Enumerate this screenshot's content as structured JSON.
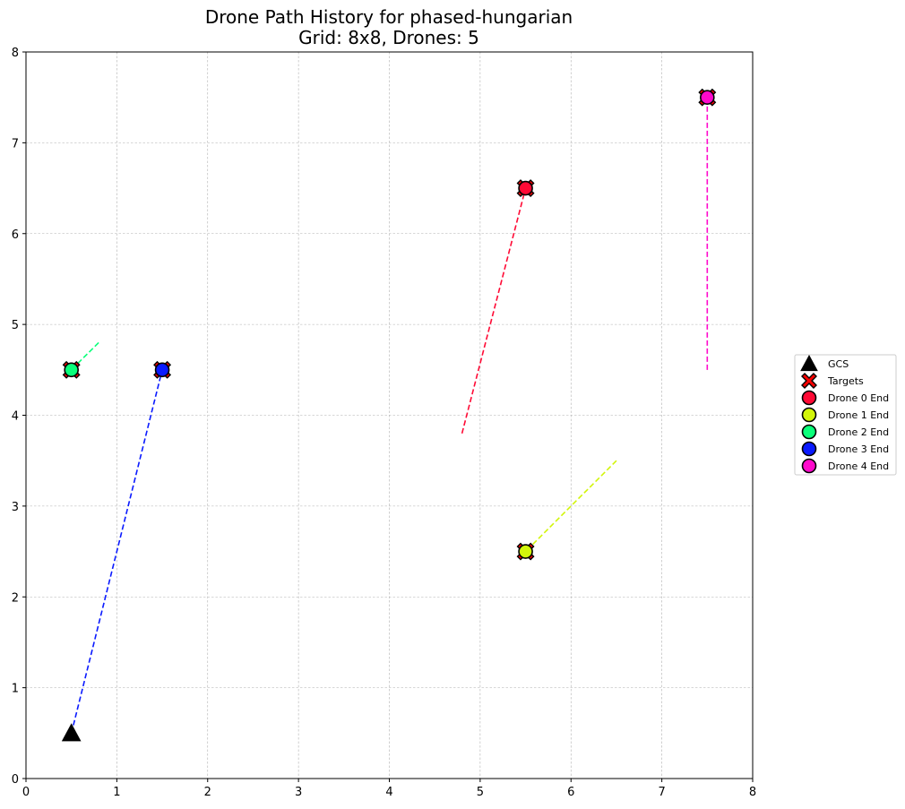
{
  "chart_data": {
    "type": "scatter",
    "title": "Drone Path History for phased-hungarian",
    "subtitle": "Grid: 8x8, Drones: 5",
    "xlabel": "",
    "ylabel": "",
    "xlim": [
      0,
      8
    ],
    "ylim": [
      0,
      8
    ],
    "xticks": [
      0,
      1,
      2,
      3,
      4,
      5,
      6,
      7,
      8
    ],
    "yticks": [
      0,
      1,
      2,
      3,
      4,
      5,
      6,
      7,
      8
    ],
    "grid": true,
    "legend_position": "right",
    "gcs": {
      "name": "GCS",
      "x": 0.5,
      "y": 0.5,
      "color": "#000000"
    },
    "targets": {
      "name": "Targets",
      "color": "#ff0000",
      "points": [
        [
          5.5,
          6.5
        ],
        [
          5.5,
          2.5
        ],
        [
          0.5,
          4.5
        ],
        [
          1.5,
          4.5
        ],
        [
          7.5,
          7.5
        ]
      ]
    },
    "drones": [
      {
        "name": "Drone 0 End",
        "color": "#ff0a35",
        "path": [
          [
            4.8,
            3.8
          ],
          [
            5.5,
            6.5
          ]
        ],
        "end": [
          5.5,
          6.5
        ]
      },
      {
        "name": "Drone 1 End",
        "color": "#d2f50a",
        "path": [
          [
            6.5,
            3.5
          ],
          [
            5.5,
            2.5
          ]
        ],
        "end": [
          5.5,
          2.5
        ]
      },
      {
        "name": "Drone 2 End",
        "color": "#0aff7a",
        "path": [
          [
            0.8,
            4.8
          ],
          [
            0.5,
            4.5
          ]
        ],
        "end": [
          0.5,
          4.5
        ]
      },
      {
        "name": "Drone 3 End",
        "color": "#0a1aff",
        "path": [
          [
            0.5,
            0.5
          ],
          [
            1.5,
            4.5
          ]
        ],
        "end": [
          1.5,
          4.5
        ]
      },
      {
        "name": "Drone 4 End",
        "color": "#ff0acc",
        "path": [
          [
            7.5,
            4.5
          ],
          [
            7.5,
            7.5
          ]
        ],
        "end": [
          7.5,
          7.5
        ]
      }
    ]
  }
}
